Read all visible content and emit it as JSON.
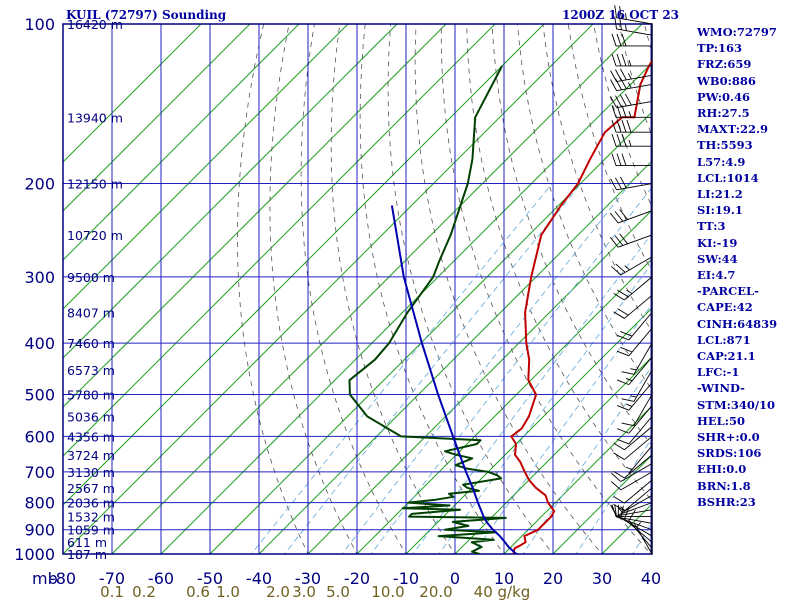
{
  "header": {
    "title": "KUIL (72797) Sounding",
    "datetime": "1200Z 16 OCT 23"
  },
  "indices": [
    "WMO:72797",
    "TP:163",
    "FRZ:659",
    "WB0:886",
    "PW:0.46",
    "RH:27.5",
    "MAXT:22.9",
    "TH:5593",
    "L57:4.9",
    "LCL:1014",
    "LI:21.2",
    "SI:19.1",
    "TT:3",
    "KI:-19",
    "SW:44",
    "EI:4.7",
    "-PARCEL-",
    "CAPE:42",
    "CINH:64839",
    "LCL:871",
    "CAP:21.1",
    "LFC:-1",
    "-WIND-",
    "STM:340/10",
    "HEL:50",
    "SHR+:0.0",
    "SRDS:106",
    "EHI:0.0",
    "BRN:1.8",
    "BSHR:23"
  ],
  "colors": {
    "frame": "#000080",
    "grid": "#2020c0",
    "isotherm": "#20a020",
    "temperature": "#c00000",
    "dewpoint": "#004000",
    "parcel": "#0000b0",
    "dry_adiabat": "#555555",
    "mixing_ratio": "#5fa8d8",
    "height_label": "#000080",
    "mixing_label": "#706020",
    "wind_barb": "#000000"
  },
  "chart_data": {
    "type": "line",
    "title": "KUIL (72797) Sounding",
    "y_axis": {
      "unit": "mb",
      "scale": "log",
      "range": [
        1000,
        100
      ],
      "ticks": [
        100,
        200,
        300,
        400,
        500,
        600,
        700,
        800,
        900,
        1000
      ]
    },
    "x_axis": {
      "unit": "C",
      "range": [
        -80,
        40
      ],
      "ticks": [
        -80,
        -70,
        -60,
        -50,
        -40,
        -30,
        -20,
        -10,
        0,
        10,
        20,
        30,
        40
      ],
      "skew": "temperature increases up-right"
    },
    "height_labels": [
      {
        "p": 100,
        "label": "16420 m"
      },
      {
        "p": 150,
        "label": "13940 m"
      },
      {
        "p": 200,
        "label": "12150 m"
      },
      {
        "p": 250,
        "label": "10720 m"
      },
      {
        "p": 300,
        "label": "9500 m"
      },
      {
        "p": 350,
        "label": "8407 m"
      },
      {
        "p": 400,
        "label": "7460 m"
      },
      {
        "p": 450,
        "label": "6573 m"
      },
      {
        "p": 500,
        "label": "5780 m"
      },
      {
        "p": 550,
        "label": "5036 m"
      },
      {
        "p": 600,
        "label": "4356 m"
      },
      {
        "p": 650,
        "label": "3724 m"
      },
      {
        "p": 700,
        "label": "3130 m"
      },
      {
        "p": 750,
        "label": "2567 m"
      },
      {
        "p": 800,
        "label": "2036 m"
      },
      {
        "p": 850,
        "label": "1532 m"
      },
      {
        "p": 900,
        "label": "1059 m"
      },
      {
        "p": 950,
        "label": "611 m"
      },
      {
        "p": 1000,
        "label": "187 m"
      }
    ],
    "mixing_ratio_labels": [
      "0.1",
      "0.2",
      "0.6",
      "1.0",
      "2.0",
      "3.0",
      "5.0",
      "10.0",
      "20.0",
      "40 g/kg"
    ],
    "mixing_ratio_values": [
      0.1,
      0.2,
      0.6,
      1.0,
      2.0,
      3.0,
      5.0,
      10.0,
      20.0,
      40.0
    ],
    "series": [
      {
        "name": "Temperature",
        "p": [
          1010,
          1000,
          990,
          975,
          965,
          950,
          925,
          900,
          875,
          850,
          830,
          820,
          800,
          775,
          750,
          725,
          700,
          670,
          650,
          620,
          600,
          580,
          550,
          500,
          470,
          430,
          400,
          350,
          300,
          250,
          220,
          200,
          180,
          160,
          150,
          150,
          130,
          120,
          100
        ],
        "t": [
          14.5,
          12.0,
          11.5,
          11.0,
          11.5,
          12.0,
          10.5,
          12.0,
          12.0,
          12.0,
          11.5,
          10.5,
          8.5,
          6.5,
          3.0,
          0.0,
          -2.5,
          -5.5,
          -8.0,
          -10.0,
          -12.5,
          -12.0,
          -13.0,
          -16.0,
          -20.5,
          -24.5,
          -28.5,
          -35.0,
          -41.0,
          -47.5,
          -49.5,
          -50.5,
          -53.0,
          -55.5,
          -55.0,
          -52.5,
          -58.0,
          -60.0,
          -63.5
        ]
      },
      {
        "name": "Dew point",
        "p": [
          1010,
          1000,
          990,
          970,
          950,
          940,
          925,
          910,
          900,
          885,
          870,
          855,
          850,
          840,
          825,
          820,
          810,
          800,
          790,
          780,
          770,
          760,
          750,
          740,
          720,
          710,
          700,
          690,
          680,
          660,
          650,
          640,
          620,
          610,
          600,
          550,
          500,
          470,
          430,
          400,
          350,
          300,
          280,
          250,
          200,
          180,
          150,
          120
        ],
        "t": [
          5.0,
          5.0,
          3.0,
          4.0,
          1.0,
          5.0,
          -7.0,
          4.0,
          -7.0,
          -3.0,
          -7.0,
          3.0,
          -17.0,
          -17.0,
          -8.0,
          -20.0,
          -11.0,
          -20.0,
          -15.0,
          -12.0,
          -13.5,
          -8.0,
          -11.0,
          -12.5,
          -6.0,
          -7.5,
          -10.0,
          -15.0,
          -18.0,
          -16.0,
          -20.0,
          -23.0,
          -18.0,
          -18.0,
          -35.0,
          -46.0,
          -54.0,
          -57.0,
          -56.0,
          -56.5,
          -59.0,
          -61.0,
          -63.0,
          -66.0,
          -73.0,
          -77.0,
          -85.0,
          -90.0
        ]
      },
      {
        "name": "Parcel",
        "p": [
          1010,
          1000,
          970,
          950,
          925,
          900,
          871,
          850,
          800,
          750,
          700,
          600,
          500,
          400,
          300,
          250,
          220
        ],
        "t": [
          14.5,
          12.5,
          9.5,
          7.8,
          5.5,
          2.8,
          0.0,
          -1.8,
          -5.8,
          -9.9,
          -14.5,
          -24.4,
          -36.0,
          -49.8,
          -67.0,
          -77.0,
          -84.0
        ]
      }
    ],
    "wind_barbs": [
      {
        "p": 1000,
        "dir": 330,
        "spd": 5
      },
      {
        "p": 975,
        "dir": 320,
        "spd": 10
      },
      {
        "p": 950,
        "dir": 310,
        "spd": 10
      },
      {
        "p": 925,
        "dir": 300,
        "spd": 10
      },
      {
        "p": 900,
        "dir": 290,
        "spd": 10
      },
      {
        "p": 875,
        "dir": 280,
        "spd": 10
      },
      {
        "p": 850,
        "dir": 270,
        "spd": 10
      },
      {
        "p": 825,
        "dir": 260,
        "spd": 10
      },
      {
        "p": 800,
        "dir": 250,
        "spd": 5
      },
      {
        "p": 775,
        "dir": 240,
        "spd": 5
      },
      {
        "p": 750,
        "dir": 230,
        "spd": 10
      },
      {
        "p": 725,
        "dir": 230,
        "spd": 10
      },
      {
        "p": 700,
        "dir": 240,
        "spd": 10
      },
      {
        "p": 675,
        "dir": 240,
        "spd": 10
      },
      {
        "p": 650,
        "dir": 230,
        "spd": 10
      },
      {
        "p": 625,
        "dir": 220,
        "spd": 5
      },
      {
        "p": 600,
        "dir": 230,
        "spd": 10
      },
      {
        "p": 575,
        "dir": 230,
        "spd": 10
      },
      {
        "p": 550,
        "dir": 220,
        "spd": 10
      },
      {
        "p": 525,
        "dir": 220,
        "spd": 10
      },
      {
        "p": 500,
        "dir": 210,
        "spd": 10
      },
      {
        "p": 475,
        "dir": 220,
        "spd": 15
      },
      {
        "p": 450,
        "dir": 210,
        "spd": 15
      },
      {
        "p": 425,
        "dir": 220,
        "spd": 15
      },
      {
        "p": 400,
        "dir": 210,
        "spd": 15
      },
      {
        "p": 375,
        "dir": 220,
        "spd": 20
      },
      {
        "p": 350,
        "dir": 220,
        "spd": 20
      },
      {
        "p": 325,
        "dir": 230,
        "spd": 20
      },
      {
        "p": 300,
        "dir": 230,
        "spd": 25
      },
      {
        "p": 275,
        "dir": 240,
        "spd": 25
      },
      {
        "p": 250,
        "dir": 250,
        "spd": 30
      },
      {
        "p": 225,
        "dir": 250,
        "spd": 30
      },
      {
        "p": 200,
        "dir": 260,
        "spd": 30
      },
      {
        "p": 185,
        "dir": 270,
        "spd": 30
      },
      {
        "p": 170,
        "dir": 270,
        "spd": 35
      },
      {
        "p": 160,
        "dir": 270,
        "spd": 40
      },
      {
        "p": 150,
        "dir": 270,
        "spd": 35
      },
      {
        "p": 140,
        "dir": 260,
        "spd": 40
      },
      {
        "p": 130,
        "dir": 260,
        "spd": 35
      },
      {
        "p": 125,
        "dir": 260,
        "spd": 35
      },
      {
        "p": 120,
        "dir": 270,
        "spd": 35
      },
      {
        "p": 110,
        "dir": 270,
        "spd": 30
      },
      {
        "p": 105,
        "dir": 280,
        "spd": 25
      },
      {
        "p": 100,
        "dir": 280,
        "spd": 25
      }
    ]
  }
}
